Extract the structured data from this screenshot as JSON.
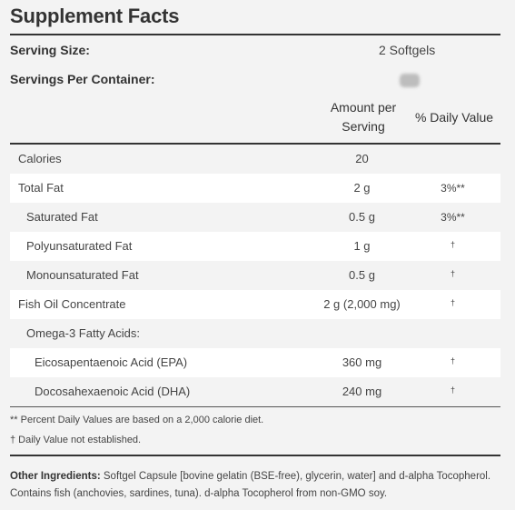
{
  "title": "Supplement Facts",
  "serving": {
    "size_label": "Serving Size:",
    "size_value": "2 Softgels",
    "per_container_label": "Servings Per Container:"
  },
  "columns": {
    "amount_line1": "Amount per",
    "amount_line2": "Serving",
    "daily_value": "% Daily Value"
  },
  "rows": [
    {
      "name": "Calories",
      "amount": "20",
      "dv": ""
    },
    {
      "name": "Total Fat",
      "amount": "2 g",
      "dv": "3%**"
    },
    {
      "name": "Saturated Fat",
      "amount": "0.5 g",
      "dv": "3%**"
    },
    {
      "name": "Polyunsaturated Fat",
      "amount": "1 g",
      "dv": "†"
    },
    {
      "name": "Monounsaturated Fat",
      "amount": "0.5 g",
      "dv": "†"
    },
    {
      "name": "Fish Oil Concentrate",
      "amount": "2 g (2,000 mg)",
      "dv": "†"
    },
    {
      "name": "Omega-3 Fatty Acids:",
      "amount": "",
      "dv": ""
    },
    {
      "name": "Eicosapentaenoic Acid (EPA)",
      "amount": "360 mg",
      "dv": "†"
    },
    {
      "name": "Docosahexaenoic Acid (DHA)",
      "amount": "240 mg",
      "dv": "†"
    }
  ],
  "footnotes": {
    "percent": "** Percent Daily Values are based on a 2,000 calorie diet.",
    "dagger": "† Daily Value not established."
  },
  "ingredients": {
    "label": "Other Ingredients:",
    "text": " Softgel Capsule [bovine gelatin (BSE-free), glycerin, water] and d-alpha Tocopherol. Contains fish (anchovies, sardines, tuna). d-alpha Tocopherol from non-GMO soy."
  }
}
